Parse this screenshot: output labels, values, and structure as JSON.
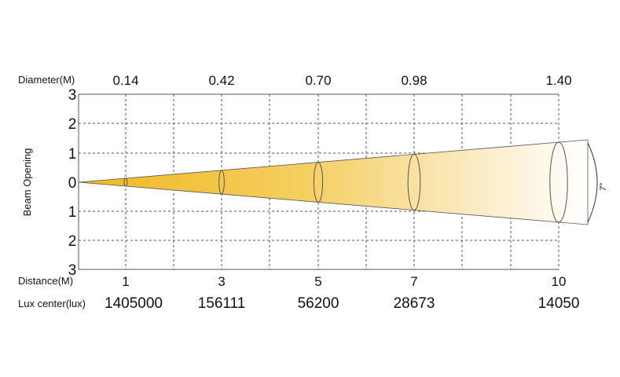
{
  "diagram": {
    "diameter_label": "Diameter(M)",
    "distance_label": "Distance(M)",
    "lux_label": "Lux center(lux)",
    "y_axis_label": "Beam Opening",
    "beam_angle": "7°",
    "y_ticks": [
      "3",
      "2",
      "1",
      "0",
      "1",
      "2",
      "3"
    ],
    "columns": [
      {
        "distance": "1",
        "diameter": "0.14",
        "lux": "1405000"
      },
      {
        "distance": "3",
        "diameter": "0.42",
        "lux": "156111"
      },
      {
        "distance": "5",
        "diameter": "0.70",
        "lux": "56200"
      },
      {
        "distance": "7",
        "diameter": "0.98",
        "lux": "28673"
      },
      {
        "distance": "10",
        "diameter": "1.40",
        "lux": "14050"
      }
    ],
    "colors": {
      "beam_start": "#F1B820",
      "beam_end": "#FFFFFF",
      "grid": "#555555",
      "outline": "#444444"
    }
  }
}
